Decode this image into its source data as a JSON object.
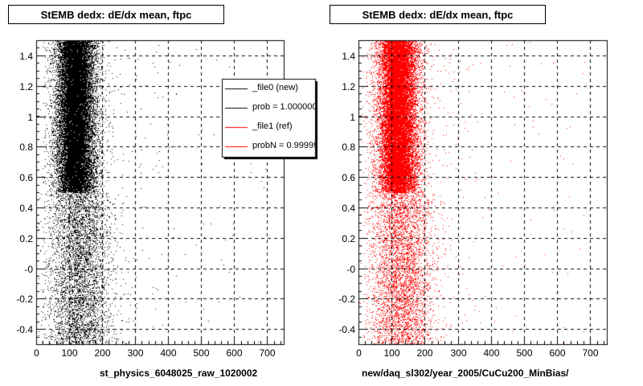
{
  "chart_data": [
    {
      "type": "scatter",
      "title": "StEMB dedx: dE/dx mean, ftpc",
      "xlabel": "st_physics_6048025_raw_1020002",
      "ylabel": "",
      "xlim": [
        0,
        750
      ],
      "ylim": [
        -0.5,
        1.5
      ],
      "x_ticks": [
        "0",
        "100",
        "200",
        "300",
        "400",
        "500",
        "600",
        "700"
      ],
      "y_ticks": [
        "-0.4",
        "-0.2",
        "-0",
        "0.2",
        "0.4",
        "0.6",
        "0.8",
        "1",
        "1.2",
        "1.4"
      ],
      "grid": true,
      "legend": {
        "placement": "top-right",
        "entries": [
          {
            "label": "_file0 (new)",
            "color": "#000000"
          },
          {
            "label": "prob = 1.000000",
            "color": "#000000"
          },
          {
            "label": "_file1 (ref)",
            "color": "#ff0000"
          },
          {
            "label": "probN = 0.99999",
            "color": "#ff0000"
          }
        ]
      },
      "series": [
        {
          "color": "#000000",
          "dense_band": {
            "x": [
              40,
              200
            ],
            "y": [
              0.5,
              1.5
            ]
          },
          "sparse_region": {
            "x": [
              0,
              350
            ],
            "y": [
              -0.5,
              0.5
            ]
          }
        }
      ]
    },
    {
      "type": "scatter",
      "title": "StEMB dedx: dE/dx mean, ftpc",
      "xlabel": "new/daq_sl302/year_2005/CuCu200_MinBias/",
      "ylabel": "",
      "xlim": [
        0,
        750
      ],
      "ylim": [
        -0.5,
        1.5
      ],
      "x_ticks": [
        "0",
        "100",
        "200",
        "300",
        "400",
        "500",
        "600",
        "700"
      ],
      "y_ticks": [
        "-0.4",
        "-0.2",
        "-0",
        "0.2",
        "0.4",
        "0.6",
        "0.8",
        "1",
        "1.2",
        "1.4"
      ],
      "grid": true,
      "series": [
        {
          "color": "#ff0000",
          "dense_band": {
            "x": [
              40,
              200
            ],
            "y": [
              0.5,
              1.5
            ]
          },
          "sparse_region": {
            "x": [
              0,
              350
            ],
            "y": [
              -0.5,
              0.5
            ]
          }
        }
      ]
    }
  ]
}
